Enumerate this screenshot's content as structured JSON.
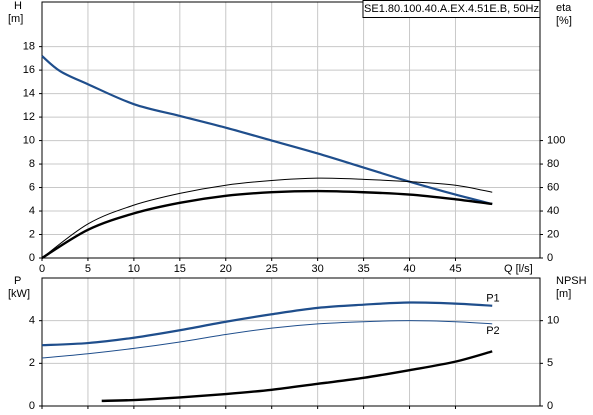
{
  "chart_data": [
    {
      "type": "line",
      "title": "SE1.80.100.40.A.EX.4.51E.B, 50Hz",
      "y_label": "H",
      "y_unit": "[m]",
      "y2_label": "eta",
      "y2_unit": "[%]",
      "x_label": "Q [l/s]",
      "xlim": [
        0,
        54.2
      ],
      "xticks": [
        0,
        5,
        10,
        15,
        20,
        25,
        30,
        35,
        40,
        45
      ],
      "show_xtick_labels": true,
      "ylim": [
        0,
        21.8
      ],
      "yticks": [
        0,
        2,
        4,
        6,
        8,
        10,
        12,
        14,
        16,
        18
      ],
      "y2lim": [
        0,
        218
      ],
      "y2ticks": [
        0,
        20,
        40,
        60,
        80,
        100
      ],
      "grid": true,
      "series": [
        {
          "color": "#1f4e8c",
          "line_width": 2.2,
          "x": [
            0,
            2,
            5,
            10,
            15,
            20,
            25,
            30,
            35,
            40,
            45,
            49
          ],
          "values": [
            17.2,
            15.9,
            14.8,
            13.1,
            12.1,
            11.1,
            10.0,
            8.9,
            7.7,
            6.5,
            5.4,
            4.6
          ]
        },
        {
          "color": "#000000",
          "line_width": 1,
          "axis": "y2",
          "x": [
            0,
            5,
            10,
            15,
            20,
            25,
            30,
            35,
            40,
            45,
            49
          ],
          "values": [
            0,
            29,
            45,
            55,
            62,
            66,
            68,
            67,
            65,
            62,
            56
          ]
        },
        {
          "color": "#000000",
          "line_width": 2.4,
          "axis": "y2",
          "x": [
            0,
            5,
            10,
            15,
            20,
            25,
            30,
            35,
            40,
            45,
            49
          ],
          "values": [
            0,
            24,
            38,
            47,
            53,
            56,
            57,
            56,
            54,
            50,
            46
          ]
        }
      ]
    },
    {
      "type": "line",
      "y_label": "P",
      "y_unit": "[kW]",
      "y2_label": "NPSH",
      "y2_unit": "[m]",
      "xlim": [
        0,
        54.2
      ],
      "xticks": [
        0,
        5,
        10,
        15,
        20,
        25,
        30,
        35,
        40,
        45
      ],
      "show_xtick_labels": false,
      "ylim": [
        0,
        6
      ],
      "yticks": [
        0,
        2,
        4
      ],
      "y2lim": [
        0,
        15
      ],
      "y2ticks": [
        0,
        5,
        10
      ],
      "grid": true,
      "series": [
        {
          "name": "P1",
          "color": "#1f4e8c",
          "line_width": 2.2,
          "x": [
            0,
            5,
            10,
            15,
            20,
            25,
            30,
            35,
            40,
            45,
            49
          ],
          "values": [
            2.85,
            2.95,
            3.2,
            3.55,
            3.95,
            4.3,
            4.6,
            4.75,
            4.85,
            4.8,
            4.7
          ]
        },
        {
          "name": "P2",
          "color": "#1f4e8c",
          "line_width": 1,
          "x": [
            0,
            5,
            10,
            15,
            20,
            25,
            30,
            35,
            40,
            45,
            49
          ],
          "values": [
            2.25,
            2.45,
            2.7,
            3.0,
            3.35,
            3.65,
            3.85,
            3.95,
            4.0,
            3.95,
            3.85
          ]
        },
        {
          "color": "#000000",
          "line_width": 2.4,
          "axis": "y2",
          "x": [
            6.5,
            10,
            15,
            20,
            25,
            30,
            35,
            40,
            45,
            49
          ],
          "values": [
            0.6,
            0.7,
            1.0,
            1.4,
            1.9,
            2.6,
            3.3,
            4.2,
            5.2,
            6.4
          ]
        }
      ]
    }
  ]
}
